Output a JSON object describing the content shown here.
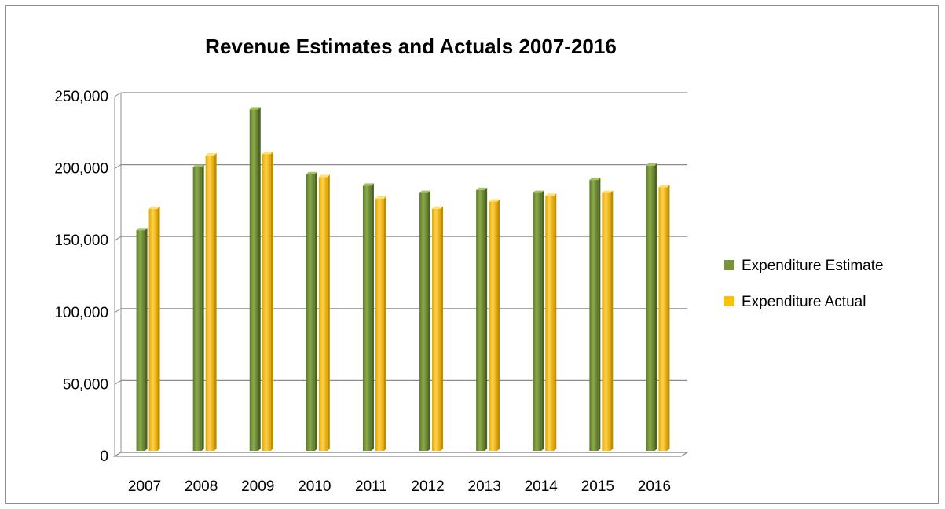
{
  "chart_data": {
    "type": "bar",
    "title": "Revenue Estimates and Actuals 2007-2016",
    "xlabel": "",
    "ylabel": "",
    "categories": [
      "2007",
      "2008",
      "2009",
      "2010",
      "2011",
      "2012",
      "2013",
      "2014",
      "2015",
      "2016"
    ],
    "series": [
      {
        "name": "Expenditure Estimate",
        "color": "#77933c",
        "values": [
          156000,
          200000,
          240000,
          195000,
          187000,
          182000,
          184000,
          182000,
          191000,
          201000
        ]
      },
      {
        "name": "Expenditure Actual",
        "color": "#ffc000",
        "values": [
          171000,
          208000,
          209000,
          193000,
          178000,
          171000,
          176000,
          180000,
          182000,
          186000
        ]
      }
    ],
    "ylim": [
      0,
      250000
    ],
    "yticks": [
      "0",
      "50,000",
      "100,000",
      "150,000",
      "200,000",
      "250,000"
    ],
    "grid": true,
    "legend_position": "right"
  }
}
